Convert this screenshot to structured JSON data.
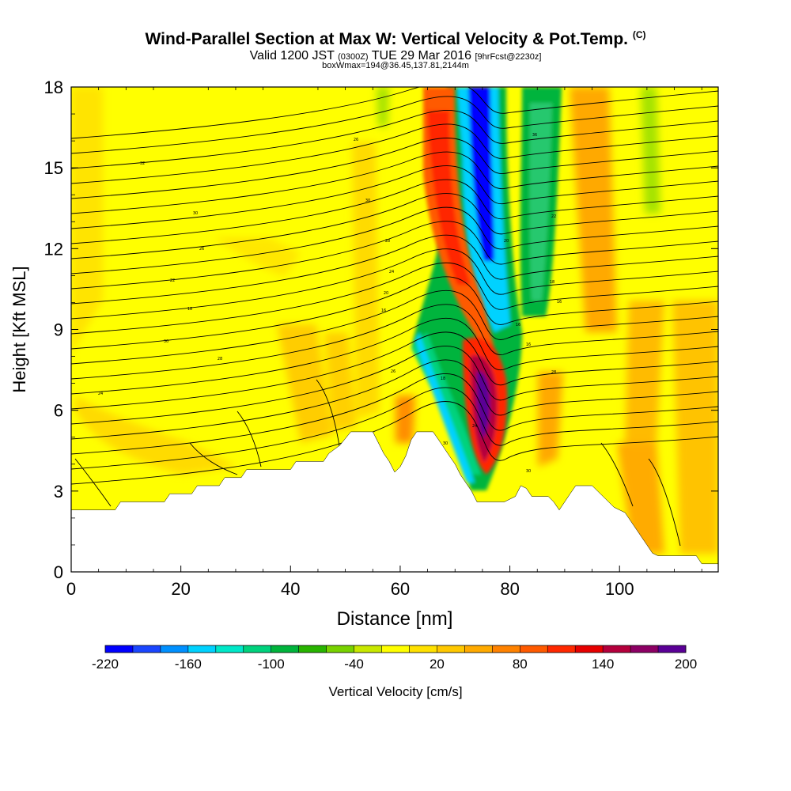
{
  "titles": {
    "main": "Wind-Parallel Section at Max W: Vertical Velocity & Pot.Temp.",
    "copyright": "(C)",
    "valid_prefix": "Valid 1200 JST",
    "valid_utc": "(0300Z)",
    "valid_date": "TUE 29 Mar 2016",
    "forecast": "[9hrFcst@2230z]",
    "box": "boxWmax=194@36.45,137.81,2144m"
  },
  "chart_data": {
    "type": "heatmap",
    "xlabel": "Distance [nm]",
    "ylabel": "Height [Kft MSL]",
    "xlim": [
      0,
      118
    ],
    "ylim": [
      0,
      18
    ],
    "x_ticks": [
      0,
      20,
      40,
      60,
      80,
      100
    ],
    "y_ticks": [
      0,
      3,
      6,
      9,
      12,
      15,
      18
    ],
    "terrain_kft": [
      [
        0,
        2.3
      ],
      [
        8,
        2.3
      ],
      [
        9,
        2.6
      ],
      [
        17,
        2.6
      ],
      [
        18,
        2.9
      ],
      [
        22,
        2.9
      ],
      [
        23,
        3.2
      ],
      [
        27,
        3.2
      ],
      [
        28,
        3.5
      ],
      [
        31,
        3.5
      ],
      [
        32,
        3.8
      ],
      [
        40,
        3.8
      ],
      [
        41,
        4.1
      ],
      [
        46,
        4.1
      ],
      [
        47,
        4.4
      ],
      [
        49,
        4.7
      ],
      [
        51,
        5.2
      ],
      [
        55,
        5.2
      ],
      [
        56,
        4.8
      ],
      [
        57,
        4.4
      ],
      [
        58,
        4.1
      ],
      [
        59,
        3.7
      ],
      [
        60,
        3.9
      ],
      [
        61,
        4.3
      ],
      [
        62,
        4.9
      ],
      [
        63,
        5.2
      ],
      [
        66,
        5.2
      ],
      [
        67,
        4.9
      ],
      [
        68,
        4.6
      ],
      [
        69,
        4.3
      ],
      [
        70,
        4.0
      ],
      [
        71,
        3.6
      ],
      [
        72,
        3.3
      ],
      [
        73,
        3.0
      ],
      [
        74,
        2.6
      ],
      [
        79,
        2.6
      ],
      [
        81,
        2.8
      ],
      [
        82,
        3.2
      ],
      [
        83,
        3.1
      ],
      [
        84,
        2.8
      ],
      [
        87,
        2.8
      ],
      [
        88,
        2.6
      ],
      [
        89,
        2.3
      ],
      [
        90,
        2.6
      ],
      [
        91,
        2.9
      ],
      [
        92,
        3.2
      ],
      [
        95,
        3.2
      ],
      [
        96,
        3.0
      ],
      [
        97,
        2.8
      ],
      [
        98,
        2.6
      ],
      [
        99,
        2.4
      ],
      [
        101,
        2.2
      ],
      [
        102,
        1.9
      ],
      [
        103,
        1.6
      ],
      [
        104,
        1.3
      ],
      [
        105,
        1.0
      ],
      [
        106,
        0.7
      ],
      [
        107,
        0.6
      ],
      [
        114,
        0.6
      ],
      [
        115,
        0.3
      ],
      [
        118,
        0.3
      ]
    ],
    "colorbar": {
      "label": "Vertical Velocity [cm/s]",
      "tick_labels": [
        "-220",
        "-160",
        "-100",
        "-40",
        "20",
        "80",
        "140",
        "200"
      ],
      "colors": [
        "#0000ff",
        "#1a46ff",
        "#0090ff",
        "#00d2ff",
        "#00e8c8",
        "#00d27d",
        "#00b43c",
        "#28b400",
        "#78d200",
        "#c8e800",
        "#ffff00",
        "#ffe100",
        "#ffc800",
        "#ffaa00",
        "#ff8200",
        "#ff5a00",
        "#ff2800",
        "#e60000",
        "#b4003c",
        "#8c0064",
        "#5a0096"
      ]
    },
    "contour_labels": [
      "26",
      "32",
      "30",
      "30",
      "28",
      "26",
      "24",
      "22",
      "20",
      "18",
      "16",
      "30",
      "28",
      "26",
      "24",
      "22",
      "20",
      "18",
      "16",
      "16",
      "16",
      "36",
      "30",
      "30",
      "28",
      "24",
      "20",
      "18"
    ]
  }
}
